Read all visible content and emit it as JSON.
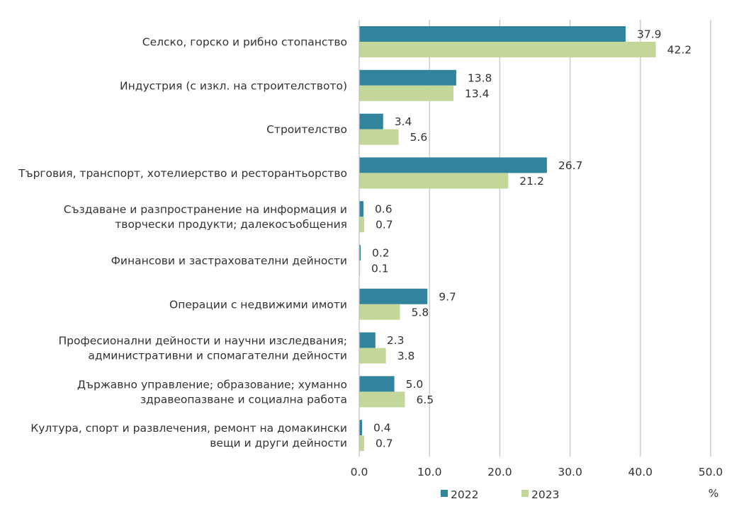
{
  "chart_data": {
    "type": "bar",
    "orientation": "horizontal",
    "categories": [
      [
        "Селско, горско и рибно стопанство"
      ],
      [
        "Индустрия (с изкл. на строителството)"
      ],
      [
        "Строителство"
      ],
      [
        "Търговия, транспорт, хотелиерство и ресторантьорство"
      ],
      [
        "Създаване и разпространение на информация и",
        "творчески продукти; далекосъобщения"
      ],
      [
        "Финансови и застрахователни дейности"
      ],
      [
        "Операции с недвижими имоти"
      ],
      [
        "Професионални дейности и научни изследвания;",
        "административни и спомагателни дейности"
      ],
      [
        "Държавно управление; образование; хуманно",
        "здравеопазване и социална работа"
      ],
      [
        "Култура, спорт и развлечения, ремонт на домакински",
        "вещи и други дейности"
      ]
    ],
    "series": [
      {
        "name": "2022",
        "color": "#31849b",
        "values": [
          37.9,
          13.8,
          3.4,
          26.7,
          0.6,
          0.2,
          9.7,
          2.3,
          5.0,
          0.4
        ],
        "labels": [
          "37.9",
          "13.8",
          "3.4",
          "26.7",
          "0.6",
          "0.2",
          "9.7",
          "2.3",
          "5.0",
          "0.4"
        ]
      },
      {
        "name": "2023",
        "color": "#c4d79b",
        "values": [
          42.2,
          13.4,
          5.6,
          21.2,
          0.7,
          0.1,
          5.8,
          3.8,
          6.5,
          0.7
        ],
        "labels": [
          "42.2",
          "13.4",
          "5.6",
          "21.2",
          "0.7",
          "0.1",
          "5.8",
          "3.8",
          "6.5",
          "0.7"
        ]
      }
    ],
    "xlim": [
      0,
      50
    ],
    "xticks": [
      "0.0",
      "10.0",
      "20.0",
      "30.0",
      "40.0",
      "50.0"
    ],
    "xtick_values": [
      0,
      10,
      20,
      30,
      40,
      50
    ],
    "unit": "%",
    "grid": "vertical",
    "legend_position": "bottom"
  }
}
